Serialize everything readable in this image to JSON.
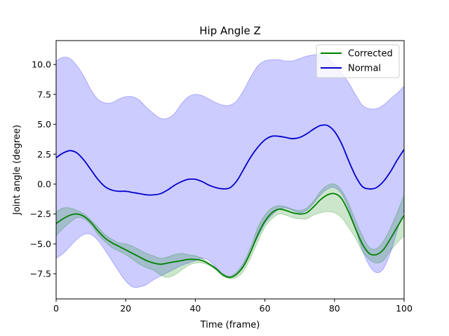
{
  "chart_data": {
    "type": "line",
    "title": "Hip Angle Z",
    "xlabel": "Time (frame)",
    "ylabel": "Joint angle (degree)",
    "xlim": [
      0,
      100
    ],
    "ylim": [
      -9.6,
      12.0
    ],
    "xticks": [
      0,
      20,
      40,
      60,
      80,
      100
    ],
    "yticks": [
      -7.5,
      -5.0,
      -2.5,
      0.0,
      2.5,
      5.0,
      7.5,
      10.0
    ],
    "grid": false,
    "legend_position": "top-right",
    "x": [
      0,
      2,
      4,
      6,
      8,
      10,
      12,
      14,
      16,
      18,
      20,
      22,
      24,
      26,
      28,
      30,
      32,
      34,
      36,
      38,
      40,
      42,
      44,
      46,
      48,
      50,
      52,
      54,
      56,
      58,
      60,
      62,
      64,
      66,
      68,
      70,
      72,
      74,
      76,
      78,
      80,
      82,
      84,
      86,
      88,
      90,
      92,
      94,
      96,
      98,
      100
    ],
    "series": [
      {
        "name": "Corrected",
        "color": "#008000",
        "band_color": "#008000",
        "mean": [
          -3.3,
          -2.9,
          -2.6,
          -2.5,
          -2.7,
          -3.2,
          -3.9,
          -4.5,
          -4.9,
          -5.2,
          -5.5,
          -5.8,
          -6.1,
          -6.4,
          -6.6,
          -6.7,
          -6.6,
          -6.5,
          -6.4,
          -6.3,
          -6.3,
          -6.4,
          -6.7,
          -7.1,
          -7.6,
          -7.8,
          -7.5,
          -6.8,
          -5.6,
          -4.2,
          -3.1,
          -2.4,
          -2.1,
          -2.2,
          -2.4,
          -2.5,
          -2.4,
          -1.9,
          -1.3,
          -0.9,
          -0.8,
          -1.2,
          -2.3,
          -3.7,
          -5.0,
          -5.8,
          -5.9,
          -5.5,
          -4.6,
          -3.6,
          -2.6
        ],
        "upper": [
          -2.3,
          -2.0,
          -2.0,
          -2.2,
          -2.5,
          -3.0,
          -3.6,
          -4.2,
          -4.6,
          -4.9,
          -5.0,
          -5.2,
          -5.5,
          -5.8,
          -6.0,
          -6.2,
          -6.1,
          -5.9,
          -5.8,
          -5.9,
          -6.0,
          -6.2,
          -6.6,
          -7.0,
          -7.5,
          -7.7,
          -7.3,
          -6.5,
          -5.2,
          -3.6,
          -2.6,
          -2.0,
          -1.8,
          -1.9,
          -2.1,
          -2.2,
          -2.0,
          -1.4,
          -0.6,
          -0.1,
          0.0,
          -0.5,
          -1.6,
          -3.0,
          -4.3,
          -5.3,
          -5.4,
          -4.8,
          -3.7,
          -2.4,
          -0.9
        ],
        "lower": [
          -4.3,
          -3.7,
          -3.2,
          -2.8,
          -2.9,
          -3.4,
          -4.2,
          -4.8,
          -5.3,
          -5.6,
          -5.9,
          -6.3,
          -6.7,
          -7.0,
          -7.2,
          -7.6,
          -7.8,
          -7.6,
          -7.2,
          -6.8,
          -6.6,
          -6.6,
          -6.8,
          -7.2,
          -7.7,
          -7.9,
          -7.8,
          -7.2,
          -6.1,
          -4.8,
          -3.6,
          -2.9,
          -2.5,
          -2.6,
          -2.8,
          -2.9,
          -2.9,
          -2.6,
          -2.4,
          -2.3,
          -2.4,
          -2.8,
          -3.6,
          -4.5,
          -5.6,
          -6.3,
          -6.6,
          -6.4,
          -5.6,
          -4.9,
          -4.3
        ]
      },
      {
        "name": "Normal",
        "color": "#0000cc",
        "band_color": "#0000ff",
        "mean": [
          2.2,
          2.6,
          2.8,
          2.6,
          2.0,
          1.2,
          0.4,
          -0.2,
          -0.5,
          -0.6,
          -0.6,
          -0.7,
          -0.8,
          -0.9,
          -0.9,
          -0.8,
          -0.5,
          -0.1,
          0.2,
          0.4,
          0.4,
          0.2,
          -0.1,
          -0.3,
          -0.4,
          -0.3,
          0.3,
          1.3,
          2.3,
          3.1,
          3.7,
          4.0,
          4.0,
          3.9,
          3.8,
          3.9,
          4.2,
          4.6,
          4.9,
          4.9,
          4.4,
          3.4,
          2.0,
          0.7,
          -0.2,
          -0.4,
          -0.3,
          0.2,
          1.0,
          2.0,
          2.9
        ],
        "upper": [
          10.3,
          10.6,
          10.5,
          9.9,
          9.0,
          7.9,
          7.1,
          6.8,
          6.8,
          7.1,
          7.3,
          7.3,
          7.0,
          6.4,
          5.9,
          5.5,
          5.5,
          5.9,
          6.7,
          7.3,
          7.5,
          7.4,
          7.1,
          6.8,
          6.6,
          6.6,
          7.0,
          7.9,
          9.0,
          9.9,
          10.3,
          10.4,
          10.4,
          10.3,
          10.3,
          10.5,
          10.7,
          10.8,
          10.9,
          10.6,
          10.0,
          9.3,
          8.5,
          7.5,
          6.6,
          6.3,
          6.3,
          6.6,
          7.1,
          7.6,
          8.2
        ],
        "lower": [
          -6.2,
          -5.8,
          -5.2,
          -4.6,
          -4.2,
          -4.2,
          -4.7,
          -5.5,
          -6.4,
          -7.3,
          -8.1,
          -8.6,
          -8.6,
          -8.4,
          -8.0,
          -7.7,
          -7.4,
          -7.1,
          -6.8,
          -6.6,
          -6.4,
          -6.2,
          -6.4,
          -7.0,
          -7.6,
          -7.8,
          -7.5,
          -6.7,
          -5.6,
          -4.4,
          -3.3,
          -2.6,
          -2.1,
          -2.0,
          -2.2,
          -2.4,
          -2.2,
          -1.6,
          -0.9,
          -0.4,
          -0.3,
          -0.8,
          -2.0,
          -3.7,
          -5.5,
          -6.8,
          -7.4,
          -7.1,
          -5.8,
          -3.9,
          -2.1
        ]
      }
    ]
  }
}
